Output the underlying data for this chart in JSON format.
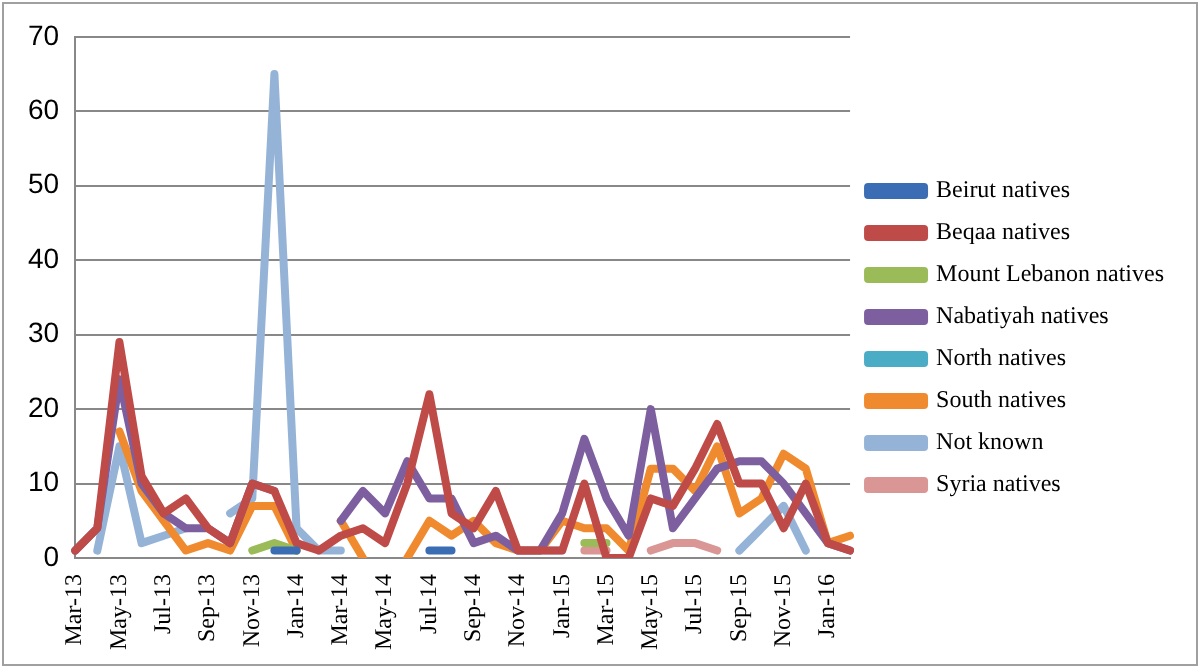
{
  "chart_data": {
    "type": "line",
    "categories": [
      "Mar-13",
      null,
      "May-13",
      null,
      "Jul-13",
      null,
      "Sep-13",
      null,
      "Nov-13",
      null,
      "Jan-14",
      null,
      "Mar-14",
      null,
      "May-14",
      null,
      "Jul-14",
      null,
      "Sep-14",
      null,
      "Nov-14",
      null,
      "Jan-15",
      null,
      "Mar-15",
      null,
      "May-15",
      null,
      "Jul-15",
      null,
      "Sep-15",
      null,
      "Nov-15",
      null,
      "Jan-16",
      null
    ],
    "series": [
      {
        "name": "Beirut natives",
        "color": "#3a6db3",
        "values": [
          null,
          null,
          null,
          null,
          null,
          null,
          null,
          null,
          null,
          1,
          1,
          null,
          null,
          null,
          null,
          null,
          1,
          1,
          null,
          null,
          null,
          null,
          null,
          null,
          null,
          null,
          null,
          null,
          null,
          null,
          null,
          null,
          null,
          null,
          null,
          null
        ]
      },
      {
        "name": "Beqaa natives",
        "color": "#be4b48",
        "values": [
          1,
          4,
          29,
          11,
          6,
          8,
          4,
          2,
          10,
          9,
          2,
          1,
          3,
          4,
          2,
          10,
          22,
          6,
          4,
          9,
          1,
          1,
          1,
          10,
          0,
          0,
          8,
          7,
          12,
          18,
          10,
          10,
          4,
          10,
          2,
          1
        ]
      },
      {
        "name": "Mount Lebanon natives",
        "color": "#9bbb59",
        "values": [
          null,
          null,
          null,
          null,
          null,
          null,
          null,
          null,
          1,
          2,
          1,
          null,
          null,
          null,
          null,
          null,
          null,
          null,
          null,
          null,
          null,
          null,
          null,
          2,
          2,
          null,
          null,
          null,
          null,
          null,
          null,
          null,
          null,
          null,
          null,
          null
        ]
      },
      {
        "name": "Nabatiyah natives",
        "color": "#7d5fa0",
        "values": [
          1,
          4,
          24,
          10,
          6,
          4,
          4,
          2,
          10,
          9,
          null,
          null,
          5,
          9,
          6,
          13,
          8,
          8,
          2,
          3,
          1,
          1,
          6,
          16,
          8,
          3,
          20,
          4,
          8,
          12,
          13,
          13,
          10,
          6,
          2,
          1
        ]
      },
      {
        "name": "North natives",
        "color": "#4bacc6",
        "values": [
          null,
          null,
          null,
          null,
          null,
          null,
          null,
          null,
          null,
          null,
          null,
          null,
          null,
          null,
          null,
          null,
          null,
          null,
          null,
          null,
          null,
          null,
          null,
          null,
          null,
          null,
          null,
          null,
          null,
          null,
          null,
          null,
          null,
          null,
          null,
          null
        ]
      },
      {
        "name": "South natives",
        "color": "#f08a2e",
        "values": [
          null,
          null,
          17,
          9,
          5,
          1,
          2,
          1,
          7,
          7,
          1,
          null,
          5,
          0,
          null,
          0,
          5,
          3,
          5,
          2,
          1,
          1,
          5,
          4,
          4,
          1,
          12,
          12,
          9,
          15,
          6,
          8,
          14,
          12,
          2,
          3
        ]
      },
      {
        "name": "Not known",
        "color": "#95b3d7",
        "values": [
          null,
          1,
          15,
          2,
          3,
          4,
          null,
          6,
          8,
          65,
          4,
          1,
          1,
          null,
          null,
          null,
          null,
          null,
          null,
          null,
          null,
          1,
          1,
          null,
          null,
          null,
          null,
          null,
          null,
          null,
          1,
          4,
          7,
          1,
          null,
          null
        ]
      },
      {
        "name": "Syria natives",
        "color": "#d99694",
        "values": [
          null,
          null,
          null,
          null,
          null,
          null,
          null,
          null,
          null,
          null,
          null,
          null,
          null,
          null,
          null,
          null,
          null,
          null,
          null,
          null,
          null,
          null,
          null,
          1,
          1,
          null,
          1,
          2,
          2,
          1,
          null,
          null,
          null,
          null,
          null,
          null
        ]
      }
    ],
    "ylim": [
      0,
      70
    ],
    "yticks": [
      0,
      10,
      20,
      30,
      40,
      50,
      60,
      70
    ],
    "grid": "y",
    "legend": "right",
    "marker": "none",
    "line_style": "solid"
  }
}
